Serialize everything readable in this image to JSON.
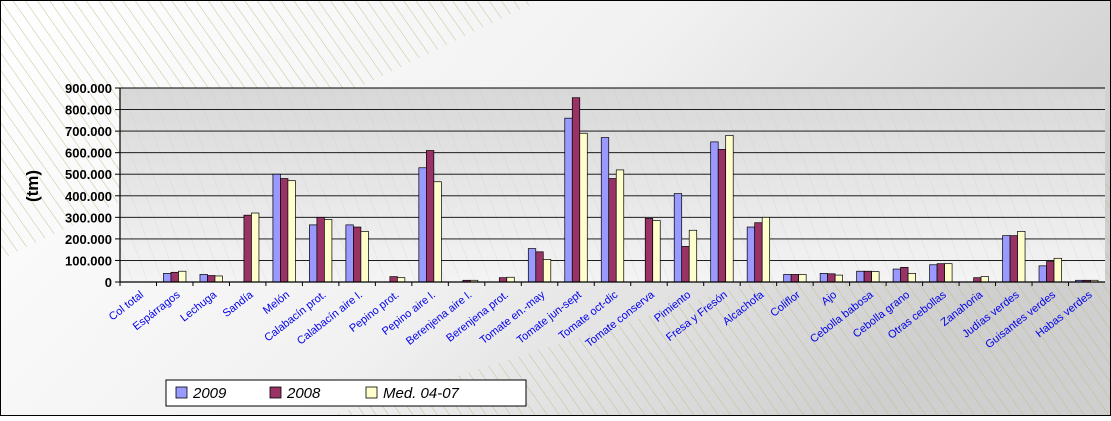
{
  "chart_data": {
    "type": "bar",
    "title": "",
    "xlabel": "",
    "ylabel": "(tm)",
    "ylim": [
      0,
      900000
    ],
    "yticks": [
      0,
      100000,
      200000,
      300000,
      400000,
      500000,
      600000,
      700000,
      800000,
      900000
    ],
    "ytick_labels": [
      "0",
      "100.000",
      "200.000",
      "300.000",
      "400.000",
      "500.000",
      "600.000",
      "700.000",
      "800.000",
      "900.000"
    ],
    "grid": true,
    "legend_position": "bottom-left",
    "categories": [
      "Col total",
      "Espárragos",
      "Lechuga",
      "Sandía",
      "Melón",
      "Calabacín prot.",
      "Calabacín aire l.",
      "Pepino prot.",
      "Pepino aire l.",
      "Berenjena aire l.",
      "Berenjena prot.",
      "Tomate en.-may",
      "Tomate jun-sept",
      "Tomate oct-dic",
      "Tomate conserva",
      "Pimiento",
      "Fresa y Fresón",
      "Alcachofa",
      "Coliflor",
      "Ajo",
      "Cebolla babosa",
      "Cebolla grano",
      "Otras cebollas",
      "Zanahoria",
      "Judías verdes",
      "Guisantes verdes",
      "Habas verdes"
    ],
    "series": [
      {
        "name": "2009",
        "color": "#9999ff",
        "values": [
          0,
          40000,
          35000,
          0,
          500000,
          265000,
          265000,
          0,
          530000,
          0,
          0,
          155000,
          760000,
          670000,
          0,
          410000,
          650000,
          255000,
          35000,
          40000,
          50000,
          60000,
          80000,
          0,
          215000,
          75000,
          8000
        ]
      },
      {
        "name": "2008",
        "color": "#993366",
        "values": [
          0,
          45000,
          30000,
          310000,
          480000,
          300000,
          255000,
          25000,
          610000,
          8000,
          20000,
          140000,
          855000,
          480000,
          295000,
          165000,
          615000,
          275000,
          35000,
          38000,
          50000,
          68000,
          85000,
          20000,
          215000,
          95000,
          8000
        ]
      },
      {
        "name": "Med. 04-07",
        "color": "#ffffcc",
        "values": [
          0,
          50000,
          28000,
          320000,
          470000,
          290000,
          235000,
          20000,
          465000,
          8000,
          22000,
          105000,
          690000,
          520000,
          285000,
          240000,
          680000,
          300000,
          35000,
          32000,
          48000,
          40000,
          85000,
          25000,
          235000,
          110000,
          8000
        ]
      }
    ]
  }
}
